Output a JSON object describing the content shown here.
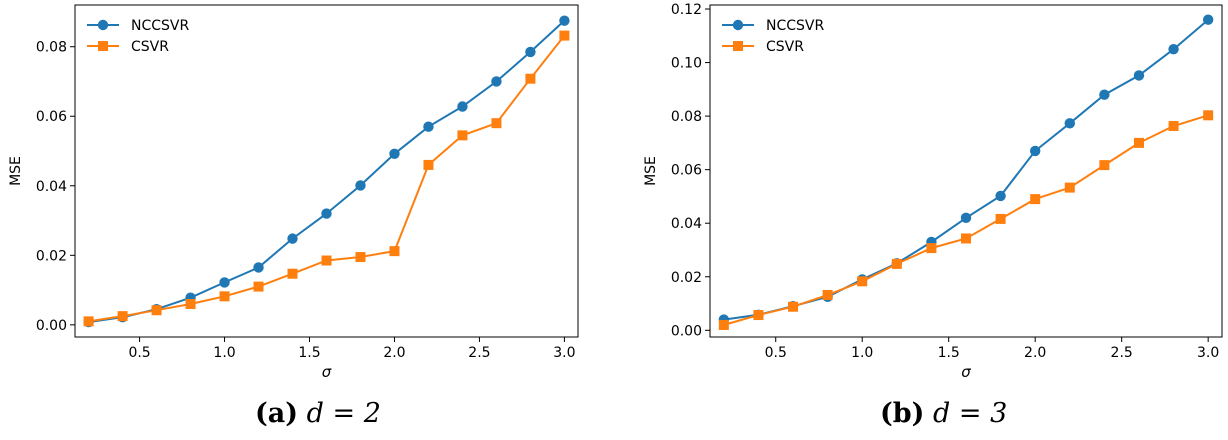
{
  "colors": {
    "nccsvr": "#1f77b4",
    "csvr": "#ff7f0e"
  },
  "chart_data": [
    {
      "type": "line",
      "x": [
        0.2,
        0.4,
        0.6,
        0.8,
        1.0,
        1.2,
        1.4,
        1.6,
        1.8,
        2.0,
        2.2,
        2.4,
        2.6,
        2.8,
        3.0
      ],
      "series": [
        {
          "name": "NCCSVR",
          "marker": "circle",
          "values": [
            0.0008,
            0.0022,
            0.0045,
            0.0078,
            0.0122,
            0.0165,
            0.0248,
            0.032,
            0.0401,
            0.0492,
            0.057,
            0.0628,
            0.07,
            0.0785,
            0.0875
          ]
        },
        {
          "name": "CSVR",
          "marker": "square",
          "values": [
            0.001,
            0.0025,
            0.0042,
            0.006,
            0.0082,
            0.011,
            0.0147,
            0.0185,
            0.0195,
            0.0212,
            0.046,
            0.0545,
            0.058,
            0.0708,
            0.0832
          ]
        }
      ],
      "xlabel": "σ",
      "ylabel": "MSE",
      "xlim": [
        0.12,
        3.08
      ],
      "ylim": [
        -0.0035,
        0.092
      ],
      "xticks": [
        0.5,
        1.0,
        1.5,
        2.0,
        2.5,
        3.0
      ],
      "xtick_labels": [
        "0.5",
        "1.0",
        "1.5",
        "2.0",
        "2.5",
        "3.0"
      ],
      "yticks": [
        0.0,
        0.02,
        0.04,
        0.06,
        0.08
      ],
      "ytick_labels": [
        "0.00",
        "0.02",
        "0.04",
        "0.06",
        "0.08"
      ],
      "legend": "top-left",
      "grid": false,
      "caption_label": "(a)",
      "caption_math": "d = 2"
    },
    {
      "type": "line",
      "x": [
        0.2,
        0.4,
        0.6,
        0.8,
        1.0,
        1.2,
        1.4,
        1.6,
        1.8,
        2.0,
        2.2,
        2.4,
        2.6,
        2.8,
        3.0
      ],
      "series": [
        {
          "name": "NCCSVR",
          "marker": "circle",
          "values": [
            0.004,
            0.0058,
            0.009,
            0.0125,
            0.019,
            0.025,
            0.033,
            0.042,
            0.0502,
            0.067,
            0.0773,
            0.088,
            0.0952,
            0.105,
            0.116
          ]
        },
        {
          "name": "CSVR",
          "marker": "square",
          "values": [
            0.002,
            0.0057,
            0.0088,
            0.0132,
            0.0183,
            0.0248,
            0.0307,
            0.0343,
            0.0416,
            0.049,
            0.0533,
            0.0617,
            0.07,
            0.0763,
            0.0803
          ]
        }
      ],
      "xlabel": "σ",
      "ylabel": "MSE",
      "xlim": [
        0.12,
        3.08
      ],
      "ylim": [
        -0.0025,
        0.1215
      ],
      "xticks": [
        0.5,
        1.0,
        1.5,
        2.0,
        2.5,
        3.0
      ],
      "xtick_labels": [
        "0.5",
        "1.0",
        "1.5",
        "2.0",
        "2.5",
        "3.0"
      ],
      "yticks": [
        0.0,
        0.02,
        0.04,
        0.06,
        0.08,
        0.1,
        0.12
      ],
      "ytick_labels": [
        "0.00",
        "0.02",
        "0.04",
        "0.06",
        "0.08",
        "0.10",
        "0.12"
      ],
      "legend": "top-left",
      "grid": false,
      "caption_label": "(b)",
      "caption_math": "d = 3"
    }
  ]
}
